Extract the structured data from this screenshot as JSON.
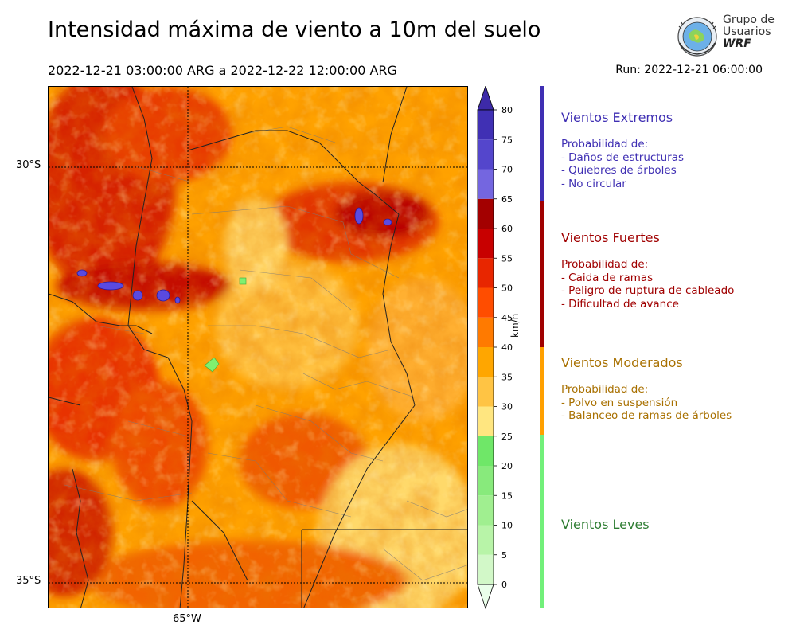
{
  "title": "Intensidad máxima de viento a 10m del suelo",
  "period": "2022-12-21 03:00:00 ARG  a  2022-12-22 12:00:00 ARG",
  "run": "Run: 2022-12-21 06:00:00",
  "logo": {
    "line1": "Grupo de",
    "line2": "Usuarios",
    "line3": "WRF"
  },
  "map": {
    "lat_labels": [
      "30°S",
      "35°S"
    ],
    "lon_labels": [
      "65°W"
    ]
  },
  "colorbar": {
    "unit": "km/h",
    "ticks": [
      "0",
      "5",
      "10",
      "15",
      "20",
      "25",
      "30",
      "35",
      "40",
      "45",
      "50",
      "55",
      "60",
      "65",
      "70",
      "75",
      "80"
    ],
    "colors": [
      "#eaffea",
      "#d2f8c8",
      "#b8f4a8",
      "#a0ef90",
      "#88ea7c",
      "#6fe768",
      "#ffe680",
      "#ffc444",
      "#ffa600",
      "#ff7a00",
      "#ff4d00",
      "#e82600",
      "#c80000",
      "#a30000",
      "#7466e0",
      "#5446cc",
      "#4030b4"
    ],
    "extend_colors": {
      "under": "#ffffff",
      "over": "#3d2aa8"
    }
  },
  "categories": [
    {
      "name": "Vientos Extremos",
      "color": "#3f2fb3",
      "bar_color": "#3f2fb3",
      "desc": [
        "Probabilidad de:",
        "- Daños de estructuras",
        "- Quiebres de árboles",
        "- No circular"
      ]
    },
    {
      "name": "Vientos Fuertes",
      "color": "#a00000",
      "bar_color": "#a00000",
      "desc": [
        "Probabilidad de:",
        "- Caida de ramas",
        "- Peligro de ruptura de cableado",
        "- Dificultad de avance"
      ]
    },
    {
      "name": "Vientos Moderados",
      "color": "#a87000",
      "bar_color": "#ffa000",
      "desc": [
        "Probabilidad de:",
        "- Polvo en suspensión",
        "- Balanceo de ramas de árboles"
      ]
    },
    {
      "name": "Vientos Leves",
      "color": "#2e7d32",
      "bar_color": "#72f07a",
      "desc": []
    }
  ]
}
